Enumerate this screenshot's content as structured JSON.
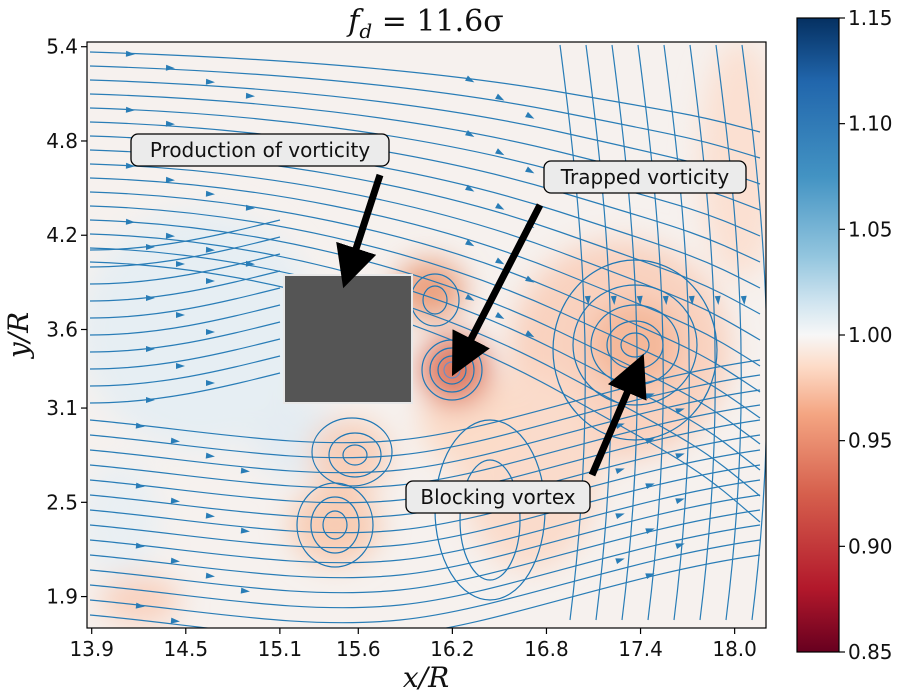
{
  "chart_data": {
    "type": "streamplot-heatmap",
    "title": "f_d = 11.6σ",
    "title_parts": {
      "f": "f",
      "sub": "d",
      "rest": " = 11.6σ"
    },
    "xlabel": "x/R",
    "ylabel": "y/R",
    "xlim": [
      13.87,
      18.2
    ],
    "ylim": [
      1.7,
      5.43
    ],
    "x_ticks": [
      "13.9",
      "14.5",
      "15.1",
      "15.6",
      "16.2",
      "16.8",
      "17.4",
      "18.0"
    ],
    "x_tick_values": [
      13.9,
      14.5,
      15.1,
      15.6,
      16.2,
      16.8,
      17.4,
      18.0
    ],
    "y_ticks": [
      "1.9",
      "2.5",
      "3.1",
      "3.6",
      "4.2",
      "4.8",
      "5.4"
    ],
    "y_tick_values": [
      1.9,
      2.5,
      3.1,
      3.6,
      4.2,
      4.8,
      5.4
    ],
    "colorbar": {
      "min": 0.85,
      "max": 1.15,
      "colormap": "RdBu",
      "ticks": [
        "0.85",
        "0.90",
        "0.95",
        "1.00",
        "1.05",
        "1.10",
        "1.15"
      ],
      "tick_values": [
        0.85,
        0.9,
        0.95,
        1.0,
        1.05,
        1.1,
        1.15
      ]
    },
    "obstacle": {
      "x": [
        15.1,
        15.93
      ],
      "y": [
        3.15,
        3.88
      ],
      "color": "#555555"
    },
    "vortices": [
      {
        "label": "trapped",
        "x": 16.22,
        "y": 3.31,
        "strength": 0.86
      },
      {
        "label": "upper-wake",
        "x": 16.1,
        "y": 3.7,
        "strength": 0.93
      },
      {
        "label": "blocking",
        "x": 17.38,
        "y": 3.45,
        "strength": 0.955
      },
      {
        "label": "lower-left",
        "x": 15.45,
        "y": 2.78,
        "strength": 0.97
      },
      {
        "label": "lower",
        "x": 15.25,
        "y": 2.38,
        "strength": 0.96
      }
    ],
    "annotations": [
      {
        "text": "Production of vorticity",
        "arrow_to": [
          15.48,
          3.93
        ]
      },
      {
        "text": "Trapped vorticity",
        "arrow_to": [
          16.22,
          3.38
        ]
      },
      {
        "text": "Blocking vortex",
        "arrow_to": [
          17.37,
          3.31
        ]
      }
    ],
    "stream_color": "#1f77b4"
  }
}
